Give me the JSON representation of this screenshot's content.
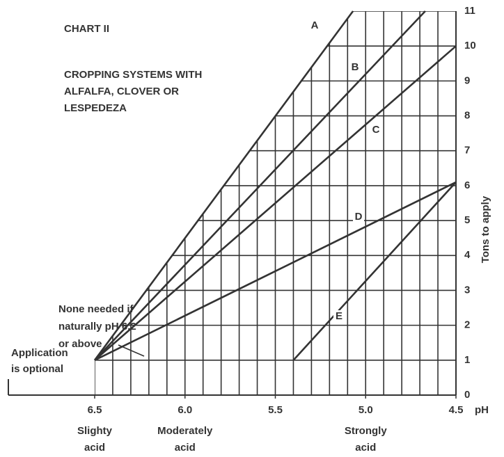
{
  "chart_data": {
    "type": "line",
    "title": "CHART II",
    "subtitle": [
      "CROPPING SYSTEMS WITH",
      "ALFALFA, CLOVER OR",
      "LESPEDEZA"
    ],
    "y_label": "Tons to apply",
    "x_label": "pH",
    "xlim": [
      6.5,
      4.5
    ],
    "ylim": [
      0,
      11
    ],
    "xticks": [
      6.5,
      {
        "value": 6,
        "label": "6.0"
      },
      5.5,
      {
        "value": 5,
        "label": "5.0"
      },
      4.5
    ],
    "yticks": [
      0,
      1,
      2,
      3,
      4,
      5,
      6,
      7,
      8,
      9,
      10,
      11
    ],
    "xgrid": [
      6.5,
      6.4,
      6.3,
      6.2,
      6.1,
      6.0,
      5.9,
      5.8,
      5.7,
      5.6,
      5.5,
      5.4,
      5.3,
      5.2,
      5.1,
      5.0,
      4.9,
      4.8,
      4.7,
      4.6,
      4.5
    ],
    "grid": true,
    "series": [
      {
        "name": "A",
        "color": "#333333",
        "x": [
          6.5,
          5.07
        ],
        "values": [
          1,
          11
        ]
      },
      {
        "name": "B",
        "color": "#333333",
        "x": [
          6.5,
          4.67
        ],
        "values": [
          1,
          11
        ]
      },
      {
        "name": "C",
        "color": "#333333",
        "x": [
          6.5,
          4.5
        ],
        "values": [
          1,
          10
        ]
      },
      {
        "name": "D",
        "color": "#333333",
        "x": [
          6.5,
          4.5
        ],
        "values": [
          1,
          6.1
        ]
      },
      {
        "name": "E",
        "color": "#333333",
        "x": [
          5.4,
          4.5
        ],
        "values": [
          1,
          6.1
        ]
      }
    ],
    "x_categories": [
      {
        "x": 6.5,
        "label": [
          "Slighty",
          "acid"
        ]
      },
      {
        "x": 6.0,
        "label": [
          "Moderately",
          "acid"
        ]
      },
      {
        "x": 5.0,
        "label": [
          "Strongly",
          "acid"
        ]
      }
    ],
    "annotations": [
      {
        "text": [
          "None needed if",
          "naturally pH 6.2",
          "or above"
        ]
      },
      {
        "text": [
          "Application",
          "is optional"
        ]
      }
    ]
  }
}
